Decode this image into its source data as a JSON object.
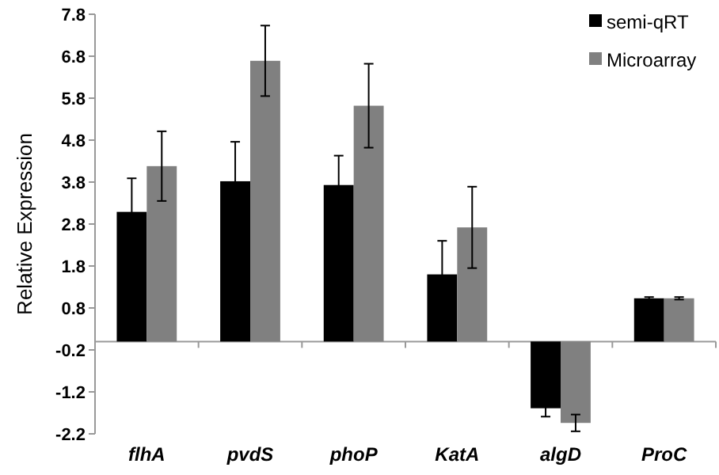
{
  "chart_data": {
    "type": "bar",
    "ylabel": "Relative Expression",
    "categories": [
      "flhA",
      "pvdS",
      "phoP",
      "KatA",
      "algD",
      "ProC"
    ],
    "series": [
      {
        "name": "semi-qRT",
        "color": "#000000",
        "values": [
          3.09,
          3.82,
          3.73,
          1.6,
          -1.59,
          1.03
        ],
        "errors": [
          0.8,
          0.94,
          0.7,
          0.8,
          0.2,
          0.03
        ]
      },
      {
        "name": "Microarray",
        "color": "#808080",
        "values": [
          4.18,
          6.69,
          5.62,
          2.72,
          -1.94,
          1.03
        ],
        "errors": [
          0.83,
          0.84,
          1.0,
          0.97,
          0.2,
          0.03
        ]
      }
    ],
    "ylim": [
      -2.2,
      7.8
    ],
    "yticks": [
      {
        "value": -2.2,
        "label": "-2.2"
      },
      {
        "value": -1.2,
        "label": "-1.2"
      },
      {
        "value": -0.2,
        "label": "-0.2"
      },
      {
        "value": 0.8,
        "label": "0.8"
      },
      {
        "value": 1.8,
        "label": "1.8"
      },
      {
        "value": 2.8,
        "label": "2.8"
      },
      {
        "value": 3.8,
        "label": "3.8"
      },
      {
        "value": 4.8,
        "label": "4.8"
      },
      {
        "value": 5.8,
        "label": "5.8"
      },
      {
        "value": 6.8,
        "label": "6.8"
      },
      {
        "value": 7.8,
        "label": "7.8"
      }
    ],
    "grid": false,
    "legend": "top right"
  }
}
